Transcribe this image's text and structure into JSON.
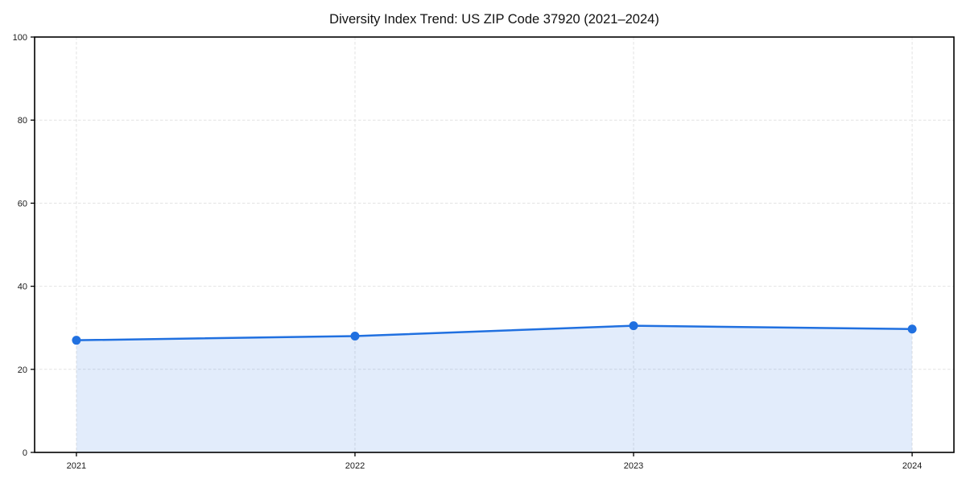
{
  "chart_data": {
    "type": "area",
    "title": "Diversity Index Trend: US ZIP Code 37920 (2021–2024)",
    "x": [
      2021,
      2022,
      2023,
      2024
    ],
    "values": [
      27.0,
      28.0,
      30.5,
      29.7
    ],
    "xlabel": "",
    "ylabel": "",
    "ylim": [
      0,
      100
    ],
    "yticks": [
      0,
      20,
      40,
      60,
      80,
      100
    ],
    "xticks": [
      2021,
      2022,
      2023,
      2024
    ],
    "grid": true,
    "grid_style": "dashed",
    "legend": false,
    "line_color": "#2070e0",
    "marker_color": "#2070e0",
    "fill_color": "rgba(32, 112, 224, 0.13)",
    "grid_color": "#e2e2e2",
    "axis_color": "#000000",
    "background_color": "#ffffff"
  }
}
